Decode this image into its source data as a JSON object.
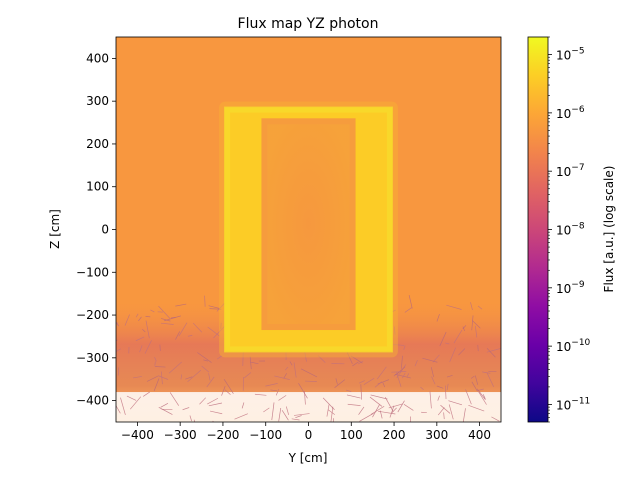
{
  "chart_data": {
    "type": "heatmap",
    "title": "Flux map YZ photon",
    "xlabel": "Y [cm]",
    "ylabel": "Z [cm]",
    "xlim": [
      -450,
      450
    ],
    "ylim": [
      -450,
      450
    ],
    "x_ticks": [
      -400,
      -300,
      -200,
      -100,
      0,
      100,
      200,
      300,
      400
    ],
    "y_ticks": [
      -400,
      -300,
      -200,
      -100,
      0,
      100,
      200,
      300,
      400
    ],
    "grid": false,
    "colorbar": {
      "label": "Flux [a.u.] (log scale)",
      "scale": "log",
      "colormap": "plasma",
      "range": [
        5e-12,
        2e-05
      ],
      "tick_exponents": [
        -11,
        -10,
        -9,
        -8,
        -7,
        -6,
        -5
      ]
    },
    "features": {
      "outer_box": {
        "y_range": [
          -195,
          195
        ],
        "z_range": [
          -285,
          285
        ],
        "wall_thickness": 25,
        "flux": 4e-06
      },
      "inner_region": {
        "y_range": [
          -110,
          110
        ],
        "z_range": [
          -235,
          260
        ],
        "flux": 3e-07
      },
      "background_flux": 5e-07,
      "lower_tail_flux": 3e-08,
      "empty_region_z_below": -380
    }
  }
}
